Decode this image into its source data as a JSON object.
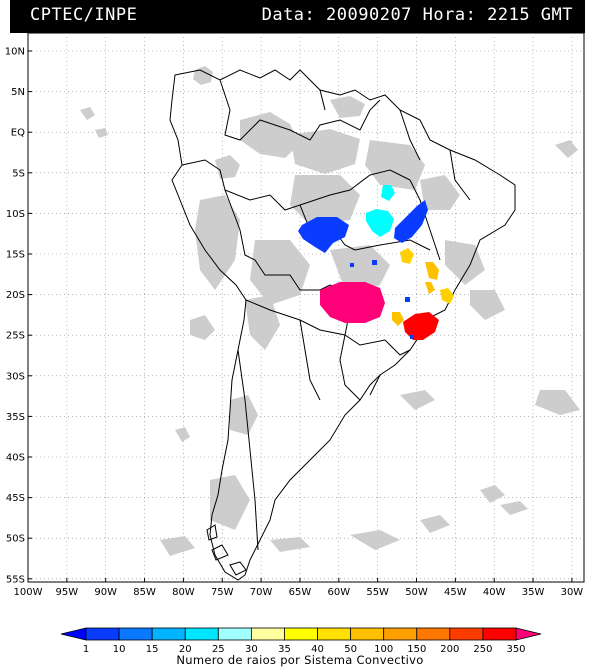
{
  "header": {
    "source": "CPTEC/INPE",
    "date_label": "Data:",
    "date_value": "20090207",
    "time_label": "Hora:",
    "time_value": "2215 GMT"
  },
  "map": {
    "lat_labels": [
      "10N",
      "5N",
      "EQ",
      "5S",
      "10S",
      "15S",
      "20S",
      "25S",
      "30S",
      "35S",
      "40S",
      "45S",
      "50S",
      "55S"
    ],
    "lon_labels": [
      "100W",
      "95W",
      "90W",
      "85W",
      "80W",
      "75W",
      "70W",
      "65W",
      "60W",
      "55W",
      "50W",
      "45W",
      "40W",
      "35W",
      "30W"
    ],
    "cloud_color": "#c8c8c8",
    "border_color": "#000000"
  },
  "legend": {
    "caption": "Numero de raios por Sistema Convectivo",
    "tick_labels": [
      "1",
      "10",
      "15",
      "20",
      "25",
      "30",
      "35",
      "40",
      "50",
      "100",
      "150",
      "200",
      "250",
      "350"
    ],
    "colors": [
      "#0000ff",
      "#0a3cff",
      "#0a78ff",
      "#00b4ff",
      "#00e6ff",
      "#a0ffff",
      "#ffffa0",
      "#ffff00",
      "#ffe000",
      "#ffc000",
      "#ffa000",
      "#ff7800",
      "#ff3c00",
      "#ff0000",
      "#ff0078"
    ]
  },
  "systems": [
    {
      "label": "blue-west",
      "color": "#0a3cff"
    },
    {
      "label": "blue-east",
      "color": "#0a3cff"
    },
    {
      "label": "cyan",
      "color": "#00ffff"
    },
    {
      "label": "magenta",
      "color": "#ff0078"
    },
    {
      "label": "red",
      "color": "#ff0000"
    },
    {
      "label": "yellow",
      "color": "#ffd000"
    }
  ]
}
